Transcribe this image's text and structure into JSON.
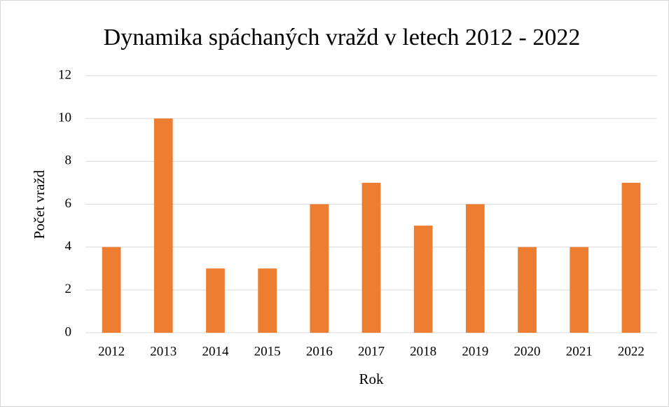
{
  "chart_data": {
    "type": "bar",
    "title": "Dynamika  spáchaných vražd v letech 2012 - 2022",
    "x_label": "Rok",
    "y_label": "Počet vražd",
    "categories": [
      "2012",
      "2013",
      "2014",
      "2015",
      "2016",
      "2017",
      "2018",
      "2019",
      "2020",
      "2021",
      "2022"
    ],
    "values": [
      4,
      10,
      3,
      3,
      6,
      7,
      5,
      6,
      4,
      4,
      7
    ],
    "color": "#ed7d31",
    "ylim": [
      0,
      12
    ],
    "yticks": [
      0,
      2,
      4,
      6,
      8,
      10,
      12
    ],
    "grid": true
  }
}
